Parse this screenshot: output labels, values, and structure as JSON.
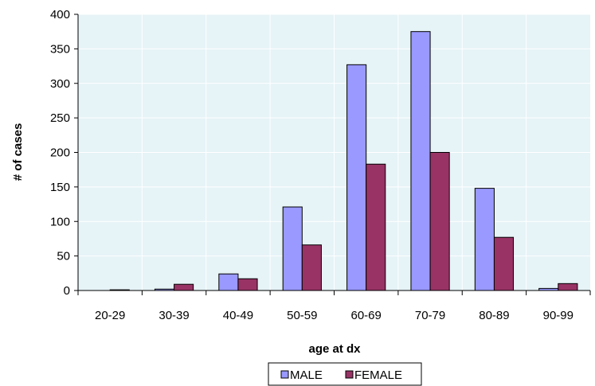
{
  "chart_data": {
    "type": "bar",
    "title": "",
    "xlabel": "age at dx",
    "ylabel": "# of cases",
    "categories": [
      "20-29",
      "30-39",
      "40-49",
      "50-59",
      "60-69",
      "70-79",
      "80-89",
      "90-99"
    ],
    "series": [
      {
        "name": "MALE",
        "values": [
          0,
          2,
          24,
          121,
          327,
          375,
          148,
          3
        ],
        "color": "#9999ff"
      },
      {
        "name": "FEMALE",
        "values": [
          1,
          9,
          17,
          66,
          183,
          200,
          77,
          10
        ],
        "color": "#993366"
      }
    ],
    "ylim": [
      0,
      400
    ],
    "yticks": [
      "0",
      "50",
      "100",
      "150",
      "200",
      "250",
      "300",
      "350",
      "400"
    ],
    "grid": true,
    "legend_position": "bottom",
    "plot_background": "#e6f3f7",
    "gridline_color": "#ffffff"
  }
}
